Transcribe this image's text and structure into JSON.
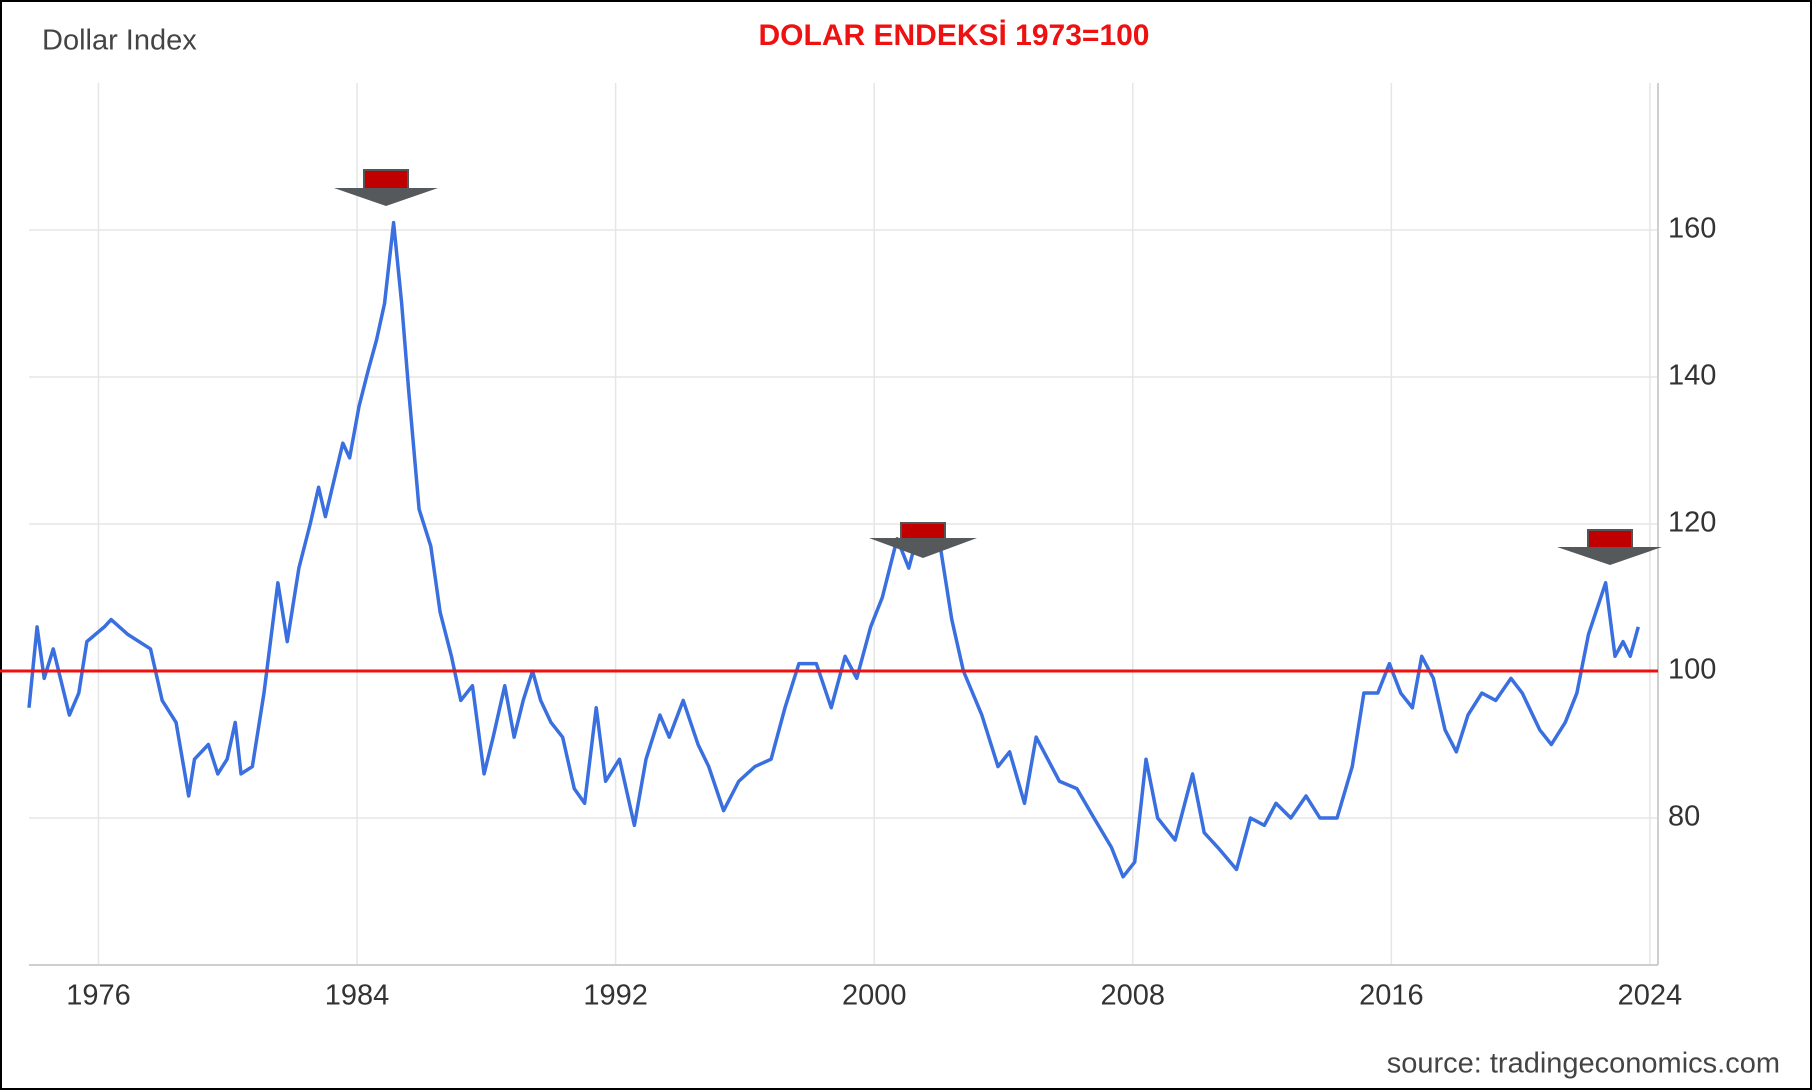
{
  "chart_data": {
    "type": "line",
    "title": "DOLAR ENDEKSİ 1973=100",
    "ylabel": "Dollar Index",
    "source": "source: tradingeconomics.com",
    "color": "#3a6fe0",
    "reference_line": 100,
    "reference_color": "#ee1111",
    "grid": true,
    "xlim": [
      1973.85,
      2024.25
    ],
    "xticks": [
      1976,
      1984,
      1992,
      2000,
      2008,
      2016,
      2024
    ],
    "ylim": [
      60,
      180
    ],
    "yticks": [
      80,
      100,
      120,
      140,
      160
    ],
    "x": [
      1973.85,
      1974.1,
      1974.32,
      1974.6,
      1975.1,
      1975.39,
      1975.64,
      1976.18,
      1976.39,
      1976.9,
      1977.61,
      1977.97,
      1978.4,
      1978.79,
      1978.97,
      1979.4,
      1979.69,
      1979.98,
      1980.23,
      1980.41,
      1980.76,
      1981.12,
      1981.55,
      1981.84,
      1982.2,
      1982.55,
      1982.81,
      1983.02,
      1983.56,
      1983.77,
      1984.06,
      1984.35,
      1984.6,
      1984.85,
      1985.13,
      1985.38,
      1985.6,
      1985.92,
      1986.28,
      1986.57,
      1986.92,
      1987.21,
      1987.57,
      1987.93,
      1988.21,
      1988.57,
      1988.86,
      1989.14,
      1989.43,
      1989.68,
      1990.0,
      1990.36,
      1990.72,
      1991.04,
      1991.4,
      1991.69,
      1992.12,
      1992.58,
      1992.94,
      1993.37,
      1993.66,
      1994.09,
      1994.55,
      1994.88,
      1995.34,
      1995.81,
      1996.31,
      1996.81,
      1997.24,
      1997.67,
      1998.21,
      1998.67,
      1999.1,
      1999.46,
      1999.89,
      2000.25,
      2000.71,
      2001.07,
      2001.43,
      2001.97,
      2002.4,
      2002.76,
      2003.33,
      2003.83,
      2004.19,
      2004.65,
      2005.01,
      2005.37,
      2005.73,
      2006.27,
      2006.8,
      2007.34,
      2007.7,
      2008.06,
      2008.41,
      2008.77,
      2009.31,
      2009.85,
      2010.21,
      2010.63,
      2011.21,
      2011.64,
      2012.07,
      2012.43,
      2012.89,
      2013.36,
      2013.79,
      2014.32,
      2014.79,
      2015.15,
      2015.58,
      2015.94,
      2016.29,
      2016.65,
      2016.94,
      2017.3,
      2017.66,
      2018.01,
      2018.37,
      2018.8,
      2019.23,
      2019.7,
      2020.05,
      2020.59,
      2020.95,
      2021.38,
      2021.74,
      2022.1,
      2022.63,
      2022.92,
      2023.17,
      2023.39,
      2023.64
    ],
    "values": [
      95,
      106,
      99,
      103,
      94,
      97,
      104,
      106,
      107,
      105,
      103,
      96,
      93,
      83,
      88,
      90,
      86,
      88,
      93,
      86,
      87,
      97,
      112,
      104,
      114,
      120,
      125,
      121,
      131,
      129,
      136,
      141,
      145,
      150,
      161,
      150,
      138,
      122,
      117,
      108,
      102,
      96,
      98,
      86,
      91,
      98,
      91,
      96,
      100,
      96,
      93,
      91,
      84,
      82,
      95,
      85,
      88,
      79,
      88,
      94,
      91,
      96,
      90,
      87,
      81,
      85,
      87,
      88,
      95,
      101,
      101,
      95,
      102,
      99,
      106,
      110,
      118,
      114,
      120,
      119,
      107,
      100,
      94,
      87,
      89,
      82,
      91,
      88,
      85,
      84,
      80,
      76,
      72,
      74,
      88,
      80,
      77,
      86,
      78,
      76,
      73,
      80,
      79,
      82,
      80,
      83,
      80,
      80,
      87,
      97,
      97,
      101,
      97,
      95,
      102,
      99,
      92,
      89,
      94,
      97,
      96,
      99,
      97,
      92,
      90,
      93,
      97,
      105,
      112,
      102,
      104,
      102,
      106
    ]
  }
}
